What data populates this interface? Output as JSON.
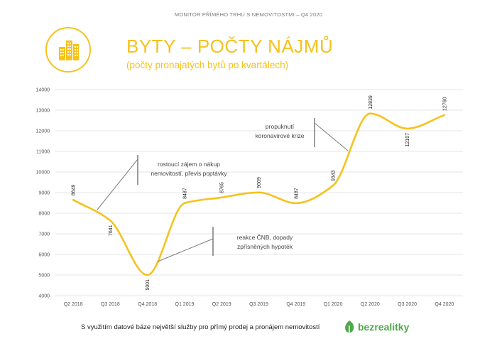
{
  "header": {
    "text": "MONITOR PŘÍMÉHO TRHU S NEMOVITOSTMI – Q4 2020"
  },
  "logo": {
    "icon": "buildings-icon",
    "color": "#f6c21c"
  },
  "title": "BYTY – POČTY NÁJMŮ",
  "subtitle": "(počty pronajatých bytů po kvartálech)",
  "chart_data": {
    "type": "line",
    "title": "",
    "xlabel": "",
    "ylabel": "",
    "categories": [
      "Q2 2018",
      "Q3 2018",
      "Q4 2018",
      "Q1 2019",
      "Q2 2019",
      "Q3 2019",
      "Q4 2019",
      "Q1 2020",
      "Q2 2020",
      "Q3 2020",
      "Q4 2020"
    ],
    "values": [
      8649,
      7641,
      5001,
      8487,
      8765,
      9009,
      8487,
      9343,
      12839,
      12107,
      12760
    ],
    "value_labels": [
      "8649",
      "7641",
      "5001",
      "8487",
      "8765",
      "9009",
      "8487",
      "9343",
      "12839",
      "12107",
      "12760"
    ],
    "ylim": [
      4000,
      14000
    ],
    "yticks": [
      4000,
      5000,
      6000,
      7000,
      8000,
      9000,
      10000,
      11000,
      12000,
      13000,
      14000
    ],
    "grid": true,
    "line_color": "#f6c21c",
    "annotations": [
      {
        "lines": [
          "rostoucí zájem o nákup",
          "nemovitostí, převis poptávky"
        ]
      },
      {
        "lines": [
          "reakce ČNB, dopady",
          "zpřísněných hypoték"
        ]
      },
      {
        "lines": [
          "propuknutí",
          "koronavirové krize"
        ]
      }
    ]
  },
  "footer": {
    "text": "S využitím datové báze největší služby pro přímý prodej a pronájem nemovitostí",
    "brand": "bezrealitky",
    "brand_color": "#4fa84b"
  }
}
